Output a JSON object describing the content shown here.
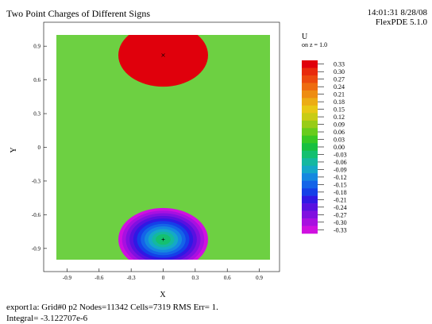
{
  "header": {
    "title": "Two Point Charges of Different Signs",
    "timestamp": "14:01:31 8/28/08",
    "version": "FlexPDE 5.1.0"
  },
  "footer": {
    "line1": "export1a:  Grid#0  p2  Nodes=11342 Cells=7319 RMS Err= 1.",
    "line2": "Integral= -3.122707e-6"
  },
  "chart_data": {
    "type": "heatmap",
    "title": "Two Point Charges of Different Signs",
    "xlabel": "X",
    "ylabel": "Y",
    "xlim": [
      -1.0,
      1.0
    ],
    "ylim": [
      -1.0,
      1.0
    ],
    "x_ticks": [
      -0.9,
      -0.6,
      -0.3,
      0,
      0.3,
      0.6,
      0.9
    ],
    "x_tick_labels": [
      "-0.9",
      "-0.6",
      "-0.3",
      "0",
      "0.3",
      "0.6",
      "0.9"
    ],
    "y_ticks": [
      0.9,
      0.6,
      0.3,
      0,
      -0.3,
      -0.6,
      -0.9
    ],
    "y_tick_labels": [
      "0.9",
      "0.6",
      "0.3",
      "0",
      "-0.3",
      "-0.6",
      "-0.9"
    ],
    "charges": [
      {
        "x": 0.0,
        "y": 0.82,
        "sign": "positive",
        "marker": "x"
      },
      {
        "x": 0.0,
        "y": -0.82,
        "sign": "negative",
        "marker": "+"
      }
    ],
    "legend": {
      "variable": "U",
      "subtitle": "on z = 1.0",
      "levels": [
        0.33,
        0.3,
        0.27,
        0.24,
        0.21,
        0.18,
        0.15,
        0.12,
        0.09,
        0.06,
        0.03,
        0.0,
        -0.03,
        -0.06,
        -0.09,
        -0.12,
        -0.15,
        -0.18,
        -0.21,
        -0.24,
        -0.27,
        -0.3,
        -0.33
      ],
      "level_labels": [
        "0.33",
        "0.30",
        "0.27",
        "0.24",
        "0.21",
        "0.18",
        "0.15",
        "0.12",
        "0.09",
        "0.06",
        "0.03",
        "0.00",
        "-0.03",
        "-0.06",
        "-0.09",
        "-0.12",
        "-0.15",
        "-0.18",
        "-0.21",
        "-0.24",
        "-0.27",
        "-0.30",
        "-0.33"
      ],
      "colors": [
        "#e0000c",
        "#e82a0c",
        "#ec4a0e",
        "#ee6c10",
        "#ee8c12",
        "#ecac14",
        "#e8c814",
        "#c8cc14",
        "#98cc18",
        "#68cc1c",
        "#38c824",
        "#18c040",
        "#14c070",
        "#14b8a0",
        "#14a8c8",
        "#1488e0",
        "#1464e8",
        "#1440e8",
        "#3018e4",
        "#5810e0",
        "#8010e0",
        "#a810e0",
        "#d010e0"
      ]
    }
  }
}
